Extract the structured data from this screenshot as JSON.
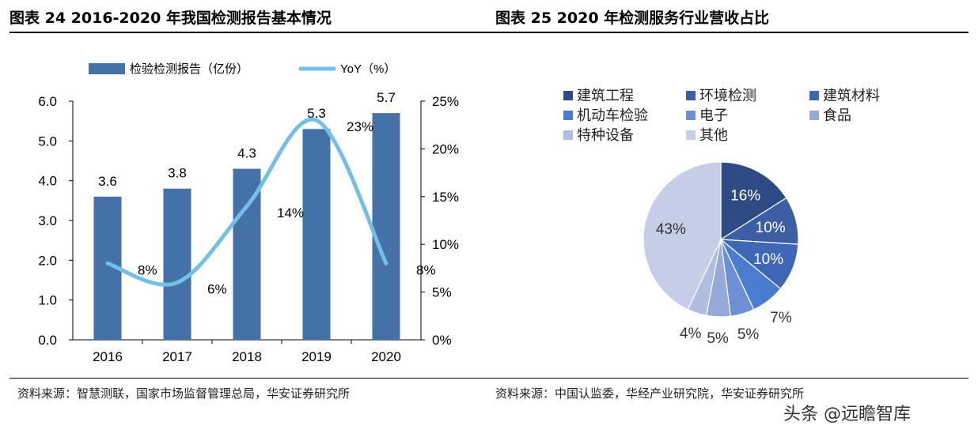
{
  "left_title": "图表 24 2016-2020 年我国检测报告基本情况",
  "right_title": "图表 25 2020 年检测服务行业营收占比",
  "left_source": "资料来源：智慧测联，国家市场监督管理总局，华安证券研究所",
  "right_source": "资料来源：中国认监委，华经产业研究院，华安证券研究所",
  "watermark": "头条 @远瞻智库",
  "chart_data": [
    {
      "type": "bar",
      "categories": [
        "2016",
        "2017",
        "2018",
        "2019",
        "2020"
      ],
      "series": [
        {
          "name": "检验检测报告（亿份）",
          "type": "bar",
          "axis": "left",
          "values": [
            3.6,
            3.8,
            4.3,
            5.3,
            5.7
          ],
          "labels": [
            "3.6",
            "3.8",
            "4.3",
            "5.3",
            "5.7"
          ],
          "color": "#4472a8"
        },
        {
          "name": "YoY（%）",
          "type": "line",
          "axis": "right",
          "values": [
            8,
            6,
            14,
            23,
            8
          ],
          "labels": [
            "8%",
            "6%",
            "14%",
            "23%",
            "8%"
          ],
          "color": "#74bfe8"
        }
      ],
      "ylim": [
        0,
        6
      ],
      "yticks": [
        "0.0",
        "1.0",
        "2.0",
        "3.0",
        "4.0",
        "5.0",
        "6.0"
      ],
      "y2lim": [
        0,
        25
      ],
      "y2ticks": [
        "0%",
        "5%",
        "10%",
        "15%",
        "20%",
        "25%"
      ],
      "legend": "top"
    },
    {
      "type": "pie",
      "labels": [
        "建筑工程",
        "环境检测",
        "建筑材料",
        "机动车检验",
        "电子",
        "食品",
        "特种设备",
        "其他"
      ],
      "values": [
        16,
        10,
        10,
        7,
        5,
        5,
        4,
        43
      ],
      "value_labels": [
        "16%",
        "10%",
        "10%",
        "7%",
        "5%",
        "5%",
        "4%",
        "43%"
      ],
      "colors": [
        "#2f4b86",
        "#3b5ea5",
        "#3f67b6",
        "#4a7dd0",
        "#6d8fd4",
        "#95a9db",
        "#b1bde0",
        "#c6cde6"
      ],
      "legend": "top"
    }
  ]
}
